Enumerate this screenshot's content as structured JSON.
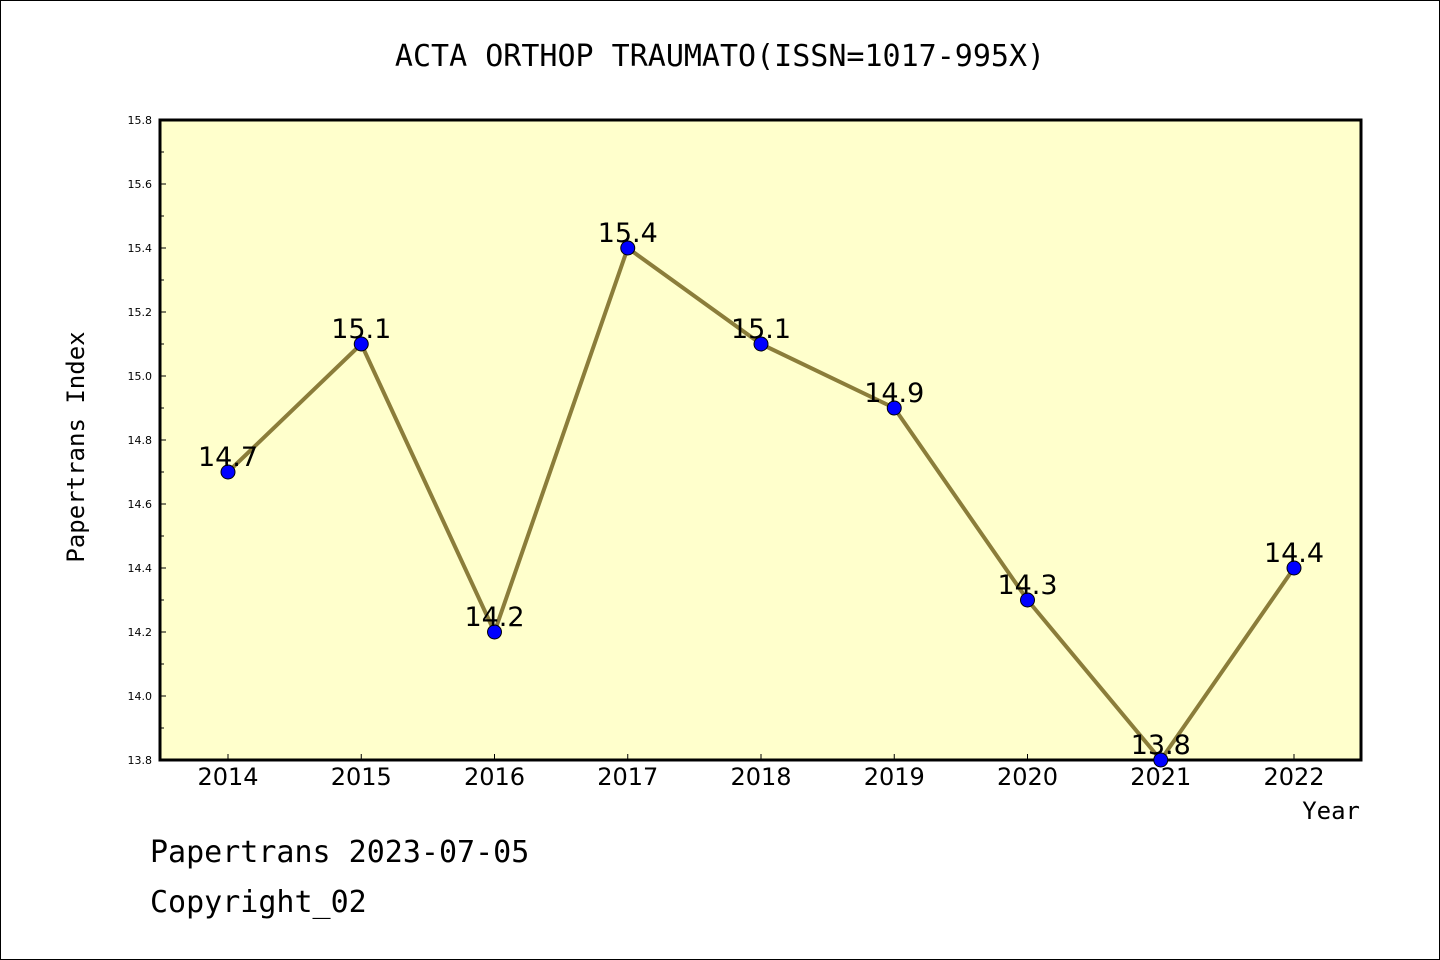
{
  "chart_data": {
    "type": "line",
    "title": "ACTA ORTHOP TRAUMATO(ISSN=1017-995X)",
    "xlabel": "Year",
    "ylabel": "Papertrans Index",
    "categories": [
      "2014",
      "2015",
      "2016",
      "2017",
      "2018",
      "2019",
      "2020",
      "2021",
      "2022"
    ],
    "values": [
      14.7,
      15.1,
      14.2,
      15.4,
      15.1,
      14.9,
      14.3,
      13.8,
      14.4
    ],
    "data_labels": [
      "14.7",
      "15.1",
      "14.2",
      "15.4",
      "15.1",
      "14.9",
      "14.3",
      "13.8",
      "14.4"
    ],
    "ylim": [
      13.8,
      15.8
    ],
    "yticks": [
      "13.8",
      "14.0",
      "14.2",
      "14.4",
      "14.6",
      "14.8",
      "15.0",
      "15.2",
      "15.4",
      "15.6",
      "15.8"
    ],
    "grid": false,
    "colors": {
      "plot_background": "#ffffcc",
      "line": "#8b7d3a",
      "marker": "#0000ff"
    }
  },
  "footer": {
    "date_line": "Papertrans 2023-07-05",
    "copyright": "Copyright_02"
  }
}
